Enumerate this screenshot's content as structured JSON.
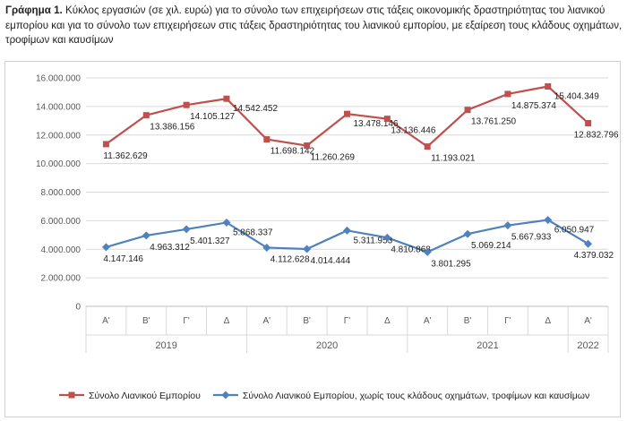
{
  "caption": {
    "prefix": "Γράφημα 1.",
    "text": "Κύκλος εργασιών (σε χιλ. ευρώ) για το σύνολο των επιχειρήσεων στις τάξεις οικονομικής δραστηριότητας του λιανικού εμπορίου και για το σύνολο των επιχειρήσεων στις τάξεις δραστηριότητας του λιανικού εμπορίου, με εξαίρεση τους κλάδους οχημάτων, τροφίμων και καυσίμων"
  },
  "chart_data": {
    "type": "line",
    "categories": [
      "Α'",
      "Β'",
      "Γ'",
      "Δ",
      "Α'",
      "Β'",
      "Γ'",
      "Δ",
      "Α'",
      "Β'",
      "Γ'",
      "Δ",
      "Α'"
    ],
    "year_groups": [
      {
        "label": "2019",
        "span": 4
      },
      {
        "label": "2020",
        "span": 4
      },
      {
        "label": "2021",
        "span": 4
      },
      {
        "label": "2022",
        "span": 1
      }
    ],
    "yticks": [
      "0",
      "2.000.000",
      "4.000.000",
      "6.000.000",
      "8.000.000",
      "10.000.000",
      "12.000.000",
      "14.000.000",
      "16.000.000"
    ],
    "ylim": [
      0,
      16000000
    ],
    "grid": true,
    "legend_position": "bottom",
    "series": [
      {
        "name": "Σύνολο Λιανικού Εμπορίου",
        "color": "#c0504d",
        "marker": "square",
        "values": [
          11362629,
          13386156,
          14105127,
          14542452,
          11698142,
          11260269,
          13478146,
          13136446,
          11193021,
          13761250,
          14875374,
          15404349,
          12832796
        ],
        "labels": [
          "11.362.629",
          "13.386.156",
          "14.105.127",
          "14.542.452",
          "11.698.142",
          "11.260.269",
          "13.478.146",
          "13.136.446",
          "11.193.021",
          "13.761.250",
          "14.875.374",
          "15.404.349",
          "12.832.796"
        ]
      },
      {
        "name": "Σύνολο Λιανικού Εμπορίου, χωρίς τους κλάδους οχημάτων, τροφίμων και καυσίμων",
        "color": "#4f81bd",
        "marker": "diamond",
        "values": [
          4147146,
          4963312,
          5401327,
          5868337,
          4112628,
          4014444,
          5311953,
          4810868,
          3801295,
          5069214,
          5667933,
          6050947,
          4379032
        ],
        "labels": [
          "4.147.146",
          "4.963.312",
          "5.401.327",
          "5.868.337",
          "4.112.628",
          "4.014.444",
          "5.311.953",
          "4.810.868",
          "3.801.295",
          "5.069.214",
          "5.667.933",
          "6.050.947",
          "4.379.032"
        ]
      }
    ]
  }
}
